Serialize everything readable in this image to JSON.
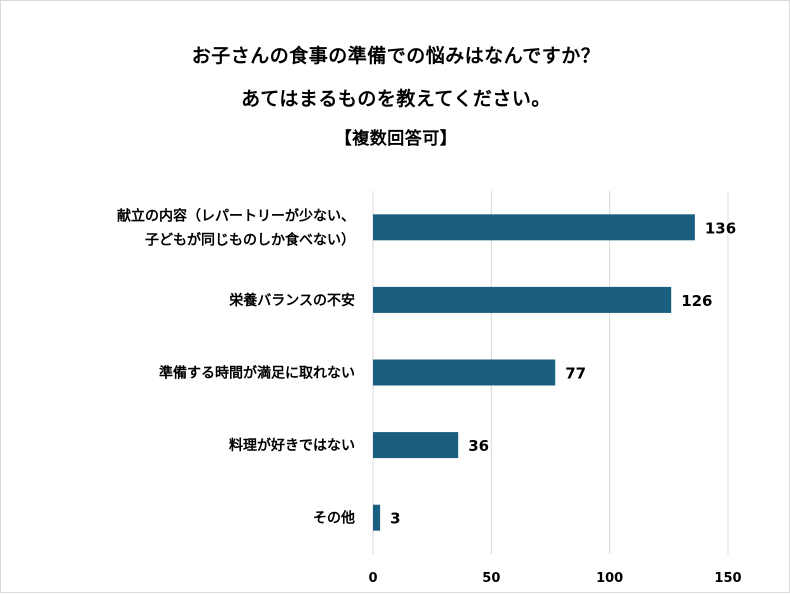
{
  "title_lines": [
    "お子さんの食事の準備での悩みはなんですか？",
    "あてはまるものを教えてください。",
    "【複数回答可】"
  ],
  "chart_data": {
    "type": "bar",
    "orientation": "horizontal",
    "categories": [
      [
        "献立の内容（レパートリーが少ない、",
        "子どもが同じものしか食べない）"
      ],
      [
        "栄養バランスの不安"
      ],
      [
        "準備する時間が満足に取れない"
      ],
      [
        "料理が好きではない"
      ],
      [
        "その他"
      ]
    ],
    "values": [
      136,
      126,
      77,
      36,
      3
    ],
    "xlim": [
      0,
      150
    ],
    "xticks": [
      0,
      50,
      100,
      150
    ],
    "grid": true,
    "bar_color": "#1a5f80",
    "grid_color": "#d9d9d9"
  }
}
